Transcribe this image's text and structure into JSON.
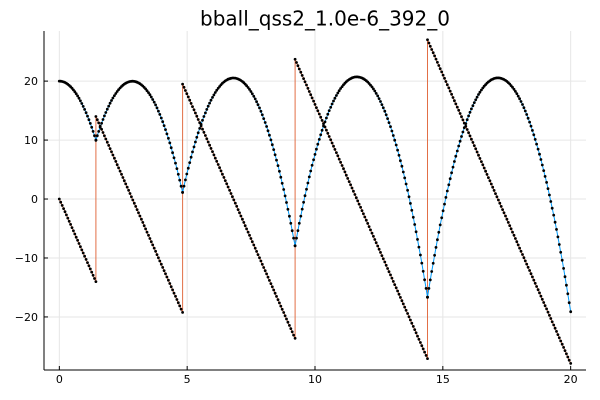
{
  "chart_data": {
    "type": "line",
    "title": "bball_qss2_1.0e-6_392_0",
    "xlabel": "",
    "ylabel": "",
    "xlim": [
      -0.6,
      20.6
    ],
    "ylim": [
      -29,
      28.5
    ],
    "xticks": [
      0,
      5,
      10,
      15,
      20
    ],
    "yticks": [
      -20,
      -10,
      0,
      10,
      20
    ],
    "grid": true,
    "legend": "none",
    "colors": {
      "series1": "#009AFA",
      "series2": "#E26F46",
      "markers": "#000000"
    },
    "bounces": [
      {
        "t": 0.0,
        "v": 0.0
      },
      {
        "t": 1.43,
        "v": 14.0
      },
      {
        "t": 4.82,
        "v": 19.5
      },
      {
        "t": 9.22,
        "v": 23.7
      },
      {
        "t": 14.4,
        "v": 27.0
      }
    ],
    "end_time": 20.0,
    "gravity": 9.8,
    "series": [
      {
        "name": "",
        "role": "position"
      },
      {
        "name": "",
        "role": "velocity"
      }
    ]
  }
}
